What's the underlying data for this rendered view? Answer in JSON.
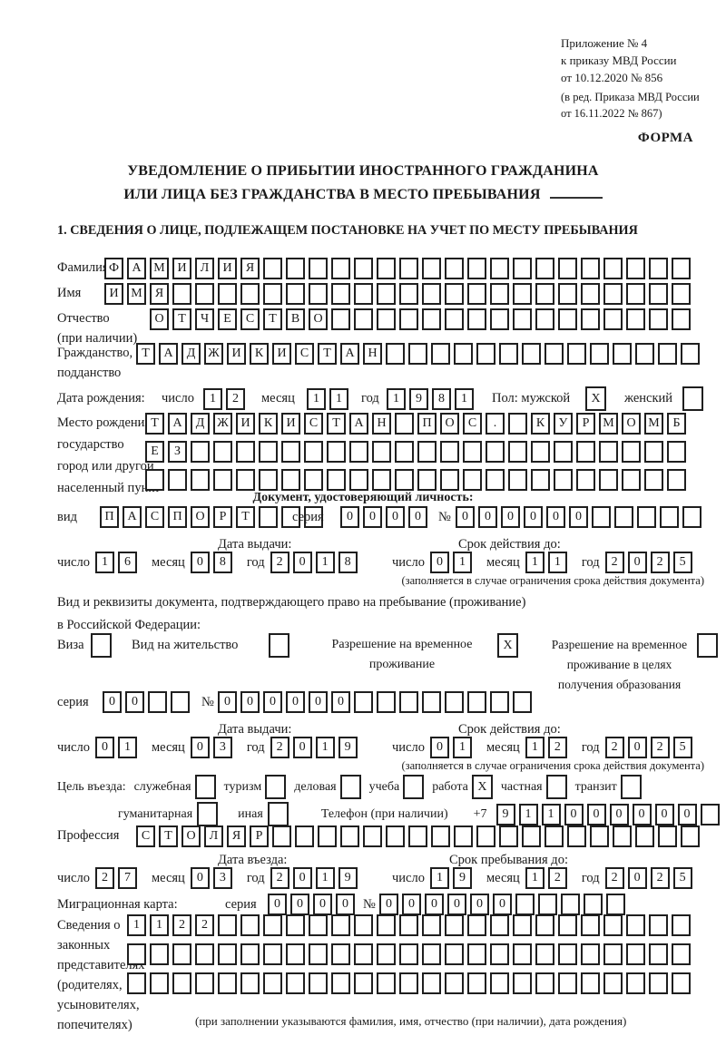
{
  "header": {
    "ref_lines": [
      "Приложение № 4",
      "к приказу МВД России",
      "от 10.12.2020 № 856"
    ],
    "ref_sub_lines": [
      "(в ред. Приказа МВД России",
      "от 16.11.2022 № 867)"
    ],
    "form_label": "ФОРМА"
  },
  "title": {
    "line1": "УВЕДОМЛЕНИЕ О ПРИБЫТИИ ИНОСТРАННОГО ГРАЖДАНИНА",
    "line2": "ИЛИ ЛИЦА БЕЗ ГРАЖДАНСТВА В МЕСТО ПРЕБЫВАНИЯ"
  },
  "section1_heading": "1. СВЕДЕНИЯ О ЛИЦЕ, ПОДЛЕЖАЩЕМ ПОСТАНОВКЕ НА УЧЕТ ПО МЕСТУ ПРЕБЫВАНИЯ",
  "date_labels": {
    "day": "число",
    "month": "месяц",
    "year": "год"
  },
  "person": {
    "surname": {
      "label": "Фамилия",
      "boxes": {
        "len": 26,
        "value": "ФАМИЛИЯ"
      }
    },
    "given_name": {
      "label": "Имя",
      "boxes": {
        "len": 26,
        "value": "ИМЯ"
      }
    },
    "patronymic": {
      "label1": "Отчество",
      "label2": "(при наличии)",
      "boxes": {
        "len": 24,
        "value": "ОТЧЕСТВО"
      }
    },
    "citizenship": {
      "label1": "Гражданство,",
      "label2": "подданство",
      "boxes": {
        "len": 25,
        "value": "ТАДЖИКИСТАН"
      }
    },
    "birth_date": {
      "label": "Дата рождения:",
      "day": {
        "len": 2,
        "value": "12"
      },
      "month": {
        "len": 2,
        "value": "11"
      },
      "year": {
        "len": 4,
        "value": "1981"
      }
    },
    "sex": {
      "male_label": "Пол: мужской",
      "male": {
        "len": 1,
        "value": "X"
      },
      "female_label": "женский",
      "female": {
        "len": 1,
        "value": ""
      }
    },
    "birth_place": {
      "label_lines": [
        "Место рождения:",
        "государство",
        "город или другой",
        "населенный пункт"
      ],
      "row1": {
        "len": 24,
        "value": "ТАДЖИКИСТАН ПОС. КУРМОМБ"
      },
      "row2": {
        "len": 24,
        "value": "ЕЗ"
      },
      "row3": {
        "len": 24,
        "value": ""
      }
    }
  },
  "identity_doc": {
    "heading": "Документ, удостоверяющий личность:",
    "type_label": "вид",
    "type": {
      "len": 10,
      "value": "ПАСПОРТ"
    },
    "series_label": "серия",
    "series": {
      "len": 4,
      "value": "0000"
    },
    "number_label": "№",
    "number": {
      "len": 11,
      "value": "000000"
    },
    "issue_label": "Дата выдачи:",
    "issue": {
      "day": {
        "len": 2,
        "value": "16"
      },
      "month": {
        "len": 2,
        "value": "08"
      },
      "year": {
        "len": 4,
        "value": "2018"
      }
    },
    "expiry_label": "Срок действия до:",
    "expiry": {
      "day": {
        "len": 2,
        "value": "01"
      },
      "month": {
        "len": 2,
        "value": "11"
      },
      "year": {
        "len": 4,
        "value": "2025"
      }
    },
    "note": "(заполняется в случае ограничения срока действия документа)"
  },
  "stay_doc": {
    "intro1": "Вид и реквизиты документа, подтверждающего право на пребывание (проживание)",
    "intro2": "в Российской Федерации:",
    "opt_visa": {
      "label": "Виза",
      "box": {
        "len": 1,
        "value": ""
      }
    },
    "opt_residence": {
      "label": "Вид на жительство",
      "box": {
        "len": 1,
        "value": ""
      }
    },
    "opt_temp": {
      "line1": "Разрешение на временное",
      "line2": "проживание",
      "box": {
        "len": 1,
        "value": "X"
      }
    },
    "opt_temp_edu": {
      "line1": "Разрешение на временное",
      "line2": "проживание в целях",
      "line3": "получения образования",
      "box": {
        "len": 1,
        "value": ""
      }
    },
    "series_label": "серия",
    "series": {
      "len": 4,
      "value": "00"
    },
    "number_label": "№",
    "number": {
      "len": 14,
      "value": "000000"
    },
    "issue_label": "Дата выдачи:",
    "issue": {
      "day": {
        "len": 2,
        "value": "01"
      },
      "month": {
        "len": 2,
        "value": "03"
      },
      "year": {
        "len": 4,
        "value": "2019"
      }
    },
    "expiry_label": "Срок действия до:",
    "expiry": {
      "day": {
        "len": 2,
        "value": "01"
      },
      "month": {
        "len": 2,
        "value": "12"
      },
      "year": {
        "len": 4,
        "value": "2025"
      }
    },
    "note": "(заполняется в случае ограничения срока действия документа)"
  },
  "visit": {
    "purpose_label": "Цель въезда:",
    "p_business": {
      "label": "служебная",
      "box": {
        "len": 1,
        "value": ""
      }
    },
    "p_tourism": {
      "label": "туризм",
      "box": {
        "len": 1,
        "value": ""
      }
    },
    "p_commercial": {
      "label": "деловая",
      "box": {
        "len": 1,
        "value": ""
      }
    },
    "p_study": {
      "label": "учеба",
      "box": {
        "len": 1,
        "value": ""
      }
    },
    "p_work": {
      "label": "работа",
      "box": {
        "len": 1,
        "value": "X"
      }
    },
    "p_private": {
      "label": "частная",
      "box": {
        "len": 1,
        "value": ""
      }
    },
    "p_transit": {
      "label": "транзит",
      "box": {
        "len": 1,
        "value": ""
      }
    },
    "p_humanitarian": {
      "label": "гуманитарная",
      "box": {
        "len": 1,
        "value": ""
      }
    },
    "p_other": {
      "label": "иная",
      "box": {
        "len": 1,
        "value": ""
      }
    },
    "phone_label": "Телефон (при наличии)",
    "phone_prefix": "+7",
    "phone": {
      "len": 10,
      "value": "911000000"
    },
    "profession_label": "Профессия",
    "profession": {
      "len": 25,
      "value": "СТОЛЯР"
    },
    "entry_label": "Дата въезда:",
    "entry": {
      "day": {
        "len": 2,
        "value": "27"
      },
      "month": {
        "len": 2,
        "value": "03"
      },
      "year": {
        "len": 4,
        "value": "2019"
      }
    },
    "stay_until_label": "Срок пребывания до:",
    "stay_until": {
      "day": {
        "len": 2,
        "value": "19"
      },
      "month": {
        "len": 2,
        "value": "12"
      },
      "year": {
        "len": 4,
        "value": "2025"
      }
    }
  },
  "migration_card": {
    "label": "Миграционная карта:",
    "series_label": "серия",
    "series": {
      "len": 4,
      "value": "0000"
    },
    "number_label": "№",
    "number": {
      "len": 11,
      "value": "000000"
    }
  },
  "representatives": {
    "label_lines": [
      "Сведения о",
      "законных",
      "представителях",
      "(родителях,",
      "усыновителях,",
      "попечителях)"
    ],
    "row1": {
      "len": 25,
      "value": "1122"
    },
    "row2": {
      "len": 25,
      "value": ""
    },
    "row3": {
      "len": 25,
      "value": ""
    },
    "note": "(при заполнении указываются фамилия, имя, отчество (при наличии), дата рождения)"
  }
}
